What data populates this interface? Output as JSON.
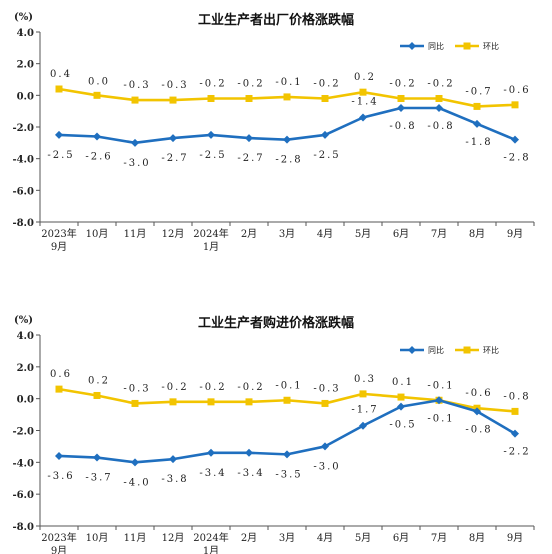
{
  "chart_data": [
    {
      "type": "line",
      "title": "工业生产者出厂价格涨跌幅",
      "unit": "(%)",
      "categories": [
        [
          "2023年",
          "9月"
        ],
        [
          "10月"
        ],
        [
          "11月"
        ],
        [
          "12月"
        ],
        [
          "2024年",
          "1月"
        ],
        [
          "2月"
        ],
        [
          "3月"
        ],
        [
          "4月"
        ],
        [
          "5月"
        ],
        [
          "6月"
        ],
        [
          "7月"
        ],
        [
          "8月"
        ],
        [
          "9月"
        ]
      ],
      "ylim": [
        -8.0,
        4.0
      ],
      "yticks": [
        "4.0",
        "2.0",
        "0.0",
        "-2.0",
        "-4.0",
        "-6.0",
        "-8.0"
      ],
      "legend_position": "top-right",
      "series": [
        {
          "name": "同比",
          "color": "#1f6fbf",
          "marker": "diamond",
          "values": [
            -2.5,
            -2.6,
            -3.0,
            -2.7,
            -2.5,
            -2.7,
            -2.8,
            -2.5,
            -1.4,
            -0.8,
            -0.8,
            -1.8,
            -2.8
          ],
          "labels": [
            "-2.5",
            "-2.6",
            "-3.0",
            "-2.7",
            "-2.5",
            "-2.7",
            "-2.8",
            "-2.5",
            "-1.4",
            "-0.8",
            "-0.8",
            "-1.8",
            "-2.8"
          ]
        },
        {
          "name": "环比",
          "color": "#f2c400",
          "marker": "square",
          "values": [
            0.4,
            0.0,
            -0.3,
            -0.3,
            -0.2,
            -0.2,
            -0.1,
            -0.2,
            0.2,
            -0.2,
            -0.2,
            -0.7,
            -0.6
          ],
          "labels": [
            "0.4",
            "0.0",
            "-0.3",
            "-0.3",
            "-0.2",
            "-0.2",
            "-0.1",
            "-0.2",
            "0.2",
            "-0.2",
            "-0.2",
            "-0.7",
            "-0.6"
          ]
        }
      ]
    },
    {
      "type": "line",
      "title": "工业生产者购进价格涨跌幅",
      "unit": "(%)",
      "categories": [
        [
          "2023年",
          "9月"
        ],
        [
          "10月"
        ],
        [
          "11月"
        ],
        [
          "12月"
        ],
        [
          "2024年",
          "1月"
        ],
        [
          "2月"
        ],
        [
          "3月"
        ],
        [
          "4月"
        ],
        [
          "5月"
        ],
        [
          "6月"
        ],
        [
          "7月"
        ],
        [
          "8月"
        ],
        [
          "9月"
        ]
      ],
      "ylim": [
        -8.0,
        4.0
      ],
      "yticks": [
        "4.0",
        "2.0",
        "0.0",
        "-2.0",
        "-4.0",
        "-6.0",
        "-8.0"
      ],
      "legend_position": "top-right",
      "series": [
        {
          "name": "同比",
          "color": "#1f6fbf",
          "marker": "diamond",
          "values": [
            -3.6,
            -3.7,
            -4.0,
            -3.8,
            -3.4,
            -3.4,
            -3.5,
            -3.0,
            -1.7,
            -0.5,
            -0.1,
            -0.8,
            -2.2
          ],
          "labels": [
            "-3.6",
            "-3.7",
            "-4.0",
            "-3.8",
            "-3.4",
            "-3.4",
            "-3.5",
            "-3.0",
            "-1.7",
            "-0.5",
            "-0.1",
            "-0.8",
            "-2.2"
          ]
        },
        {
          "name": "环比",
          "color": "#f2c400",
          "marker": "square",
          "values": [
            0.6,
            0.2,
            -0.3,
            -0.2,
            -0.2,
            -0.2,
            -0.1,
            -0.3,
            0.3,
            0.1,
            -0.1,
            -0.6,
            -0.8
          ],
          "labels": [
            "0.6",
            "0.2",
            "-0.3",
            "-0.2",
            "-0.2",
            "-0.2",
            "-0.1",
            "-0.3",
            "0.3",
            "0.1",
            "-0.1",
            "-0.6",
            "-0.8"
          ]
        }
      ]
    }
  ]
}
